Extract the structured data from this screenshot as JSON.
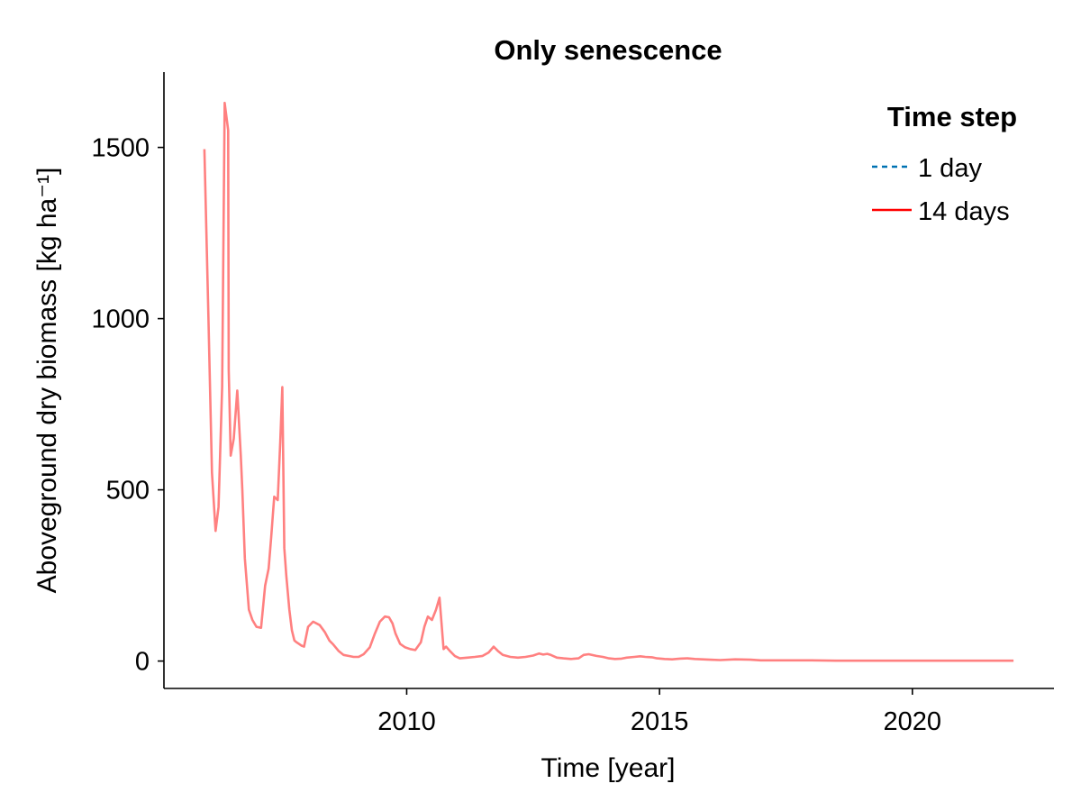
{
  "chart_data": {
    "type": "line",
    "title": "Only senescence",
    "xlabel": "Time [year]",
    "ylabel": "Aboveground dry biomass [kg ha⁻¹]",
    "xlim": [
      2005.2,
      2022.8
    ],
    "ylim": [
      -80,
      1720
    ],
    "x_ticks": [
      2010,
      2015,
      2020
    ],
    "x_tick_labels": [
      "2010",
      "2015",
      "2020"
    ],
    "y_ticks": [
      0,
      500,
      1000,
      1500
    ],
    "y_tick_labels": [
      "0",
      "500",
      "1000",
      "1500"
    ],
    "grid": false,
    "legend": {
      "title": "Time step",
      "position": "top-right",
      "entries": [
        {
          "label": "1 day",
          "color": "#0072b2",
          "style": "dashed"
        },
        {
          "label": "14 days",
          "color": "#ff0000",
          "style": "solid"
        }
      ]
    },
    "series": [
      {
        "name": "14 days",
        "color": "#ff8080",
        "x": [
          2006.0,
          2006.08,
          2006.15,
          2006.22,
          2006.28,
          2006.35,
          2006.4,
          2006.47,
          2006.48,
          2006.52,
          2006.58,
          2006.65,
          2006.72,
          2006.75,
          2006.8,
          2006.88,
          2006.95,
          2007.03,
          2007.12,
          2007.2,
          2007.27,
          2007.32,
          2007.38,
          2007.45,
          2007.5,
          2007.54,
          2007.58,
          2007.62,
          2007.68,
          2007.73,
          2007.78,
          2007.82,
          2007.87,
          2007.92,
          2007.97,
          2008.05,
          2008.15,
          2008.28,
          2008.38,
          2008.47,
          2008.55,
          2008.65,
          2008.75,
          2008.85,
          2008.95,
          2009.05,
          2009.15,
          2009.27,
          2009.37,
          2009.47,
          2009.57,
          2009.65,
          2009.72,
          2009.78,
          2009.87,
          2009.97,
          2010.07,
          2010.17,
          2010.28,
          2010.35,
          2010.42,
          2010.5,
          2010.58,
          2010.65,
          2010.73,
          2010.78,
          2010.85,
          2010.95,
          2011.05,
          2011.2,
          2011.35,
          2011.5,
          2011.62,
          2011.72,
          2011.8,
          2011.9,
          2012.05,
          2012.2,
          2012.35,
          2012.5,
          2012.62,
          2012.7,
          2012.78,
          2012.85,
          2012.97,
          2013.1,
          2013.25,
          2013.4,
          2013.5,
          2013.6,
          2013.75,
          2013.88,
          2014.0,
          2014.12,
          2014.25,
          2014.35,
          2014.5,
          2014.62,
          2014.72,
          2014.85,
          2014.95,
          2015.1,
          2015.25,
          2015.4,
          2015.55,
          2015.7,
          2015.85,
          2016.0,
          2016.2,
          2016.5,
          2016.8,
          2017.0,
          2017.5,
          2018.0,
          2018.5,
          2019.0,
          2019.5,
          2020.0,
          2020.5,
          2021.0,
          2021.5,
          2022.0
        ],
        "values": [
          1495,
          1000,
          550,
          380,
          450,
          800,
          1630,
          1550,
          850,
          600,
          650,
          790,
          600,
          500,
          300,
          150,
          120,
          100,
          97,
          220,
          270,
          360,
          480,
          470,
          640,
          800,
          330,
          250,
          150,
          90,
          60,
          55,
          50,
          45,
          42,
          100,
          115,
          105,
          85,
          60,
          48,
          30,
          18,
          15,
          12,
          12,
          20,
          40,
          80,
          115,
          130,
          128,
          110,
          80,
          50,
          40,
          35,
          32,
          55,
          100,
          130,
          120,
          150,
          185,
          35,
          42,
          30,
          15,
          8,
          10,
          12,
          15,
          25,
          42,
          30,
          18,
          12,
          10,
          12,
          16,
          22,
          19,
          21,
          18,
          10,
          8,
          6,
          8,
          18,
          20,
          15,
          12,
          8,
          6,
          7,
          10,
          12,
          14,
          12,
          11,
          8,
          6,
          5,
          7,
          8,
          6,
          5,
          4,
          3,
          5,
          4,
          2,
          2,
          2,
          1,
          1,
          1,
          1,
          1,
          1,
          1,
          1
        ]
      }
    ]
  }
}
